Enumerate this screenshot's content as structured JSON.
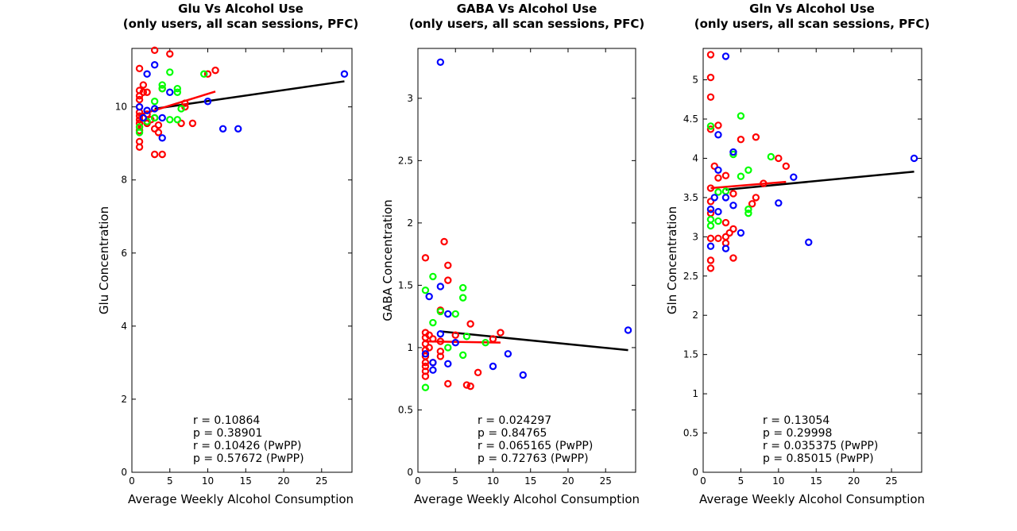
{
  "figure": {
    "charts": [
      {
        "title": "Glu Vs Alcohol Use",
        "subtitle": "(only users, all scan sessions, PFC)"
      },
      {
        "title": "GABA Vs Alcohol Use",
        "subtitle": "(only users, all scan sessions, PFC)"
      },
      {
        "title": "Gln Vs Alcohol Use",
        "subtitle": "(only users, all scan sessions, PFC)"
      }
    ]
  },
  "colors": {
    "red": "#ff0000",
    "green": "#00ff00",
    "blue": "#0000ff",
    "fit_all": "#000000",
    "fit_red": "#ff0000"
  },
  "chart_data": [
    {
      "type": "scatter",
      "title": "Glu Vs Alcohol Use",
      "subtitle": "(only users, all scan sessions, PFC)",
      "xlabel": "Average Weekly Alcohol Consumption",
      "ylabel": "Glu Concentration",
      "xlim": [
        0,
        29
      ],
      "ylim": [
        0,
        11.6
      ],
      "xticks": [
        0,
        5,
        10,
        15,
        20,
        25
      ],
      "yticks": [
        0,
        2,
        4,
        6,
        8,
        10
      ],
      "grid": false,
      "stats": [
        "r = 0.10864",
        "p = 0.38901",
        "r = 0.10426 (PwPP)",
        "p = 0.57672 (PwPP)"
      ],
      "series": [
        {
          "color": "red",
          "points": [
            [
              1,
              11.05
            ],
            [
              1,
              10.45
            ],
            [
              1,
              10.3
            ],
            [
              1,
              10.2
            ],
            [
              1,
              10.0
            ],
            [
              1,
              9.85
            ],
            [
              1,
              9.75
            ],
            [
              1,
              9.65
            ],
            [
              1,
              9.55
            ],
            [
              1,
              9.45
            ],
            [
              1,
              9.35
            ],
            [
              1,
              9.05
            ],
            [
              1,
              8.9
            ],
            [
              1.5,
              10.6
            ],
            [
              1.5,
              10.4
            ],
            [
              2,
              10.4
            ],
            [
              2,
              9.8
            ],
            [
              2,
              9.55
            ],
            [
              2.5,
              9.65
            ],
            [
              3,
              11.55
            ],
            [
              3,
              9.7
            ],
            [
              3,
              9.4
            ],
            [
              3,
              8.7
            ],
            [
              3.5,
              9.5
            ],
            [
              3.5,
              9.3
            ],
            [
              4,
              10.5
            ],
            [
              4,
              8.7
            ],
            [
              5,
              11.45
            ],
            [
              6.5,
              9.55
            ],
            [
              7,
              10.1
            ],
            [
              7,
              10.0
            ],
            [
              8,
              9.55
            ],
            [
              10,
              10.9
            ],
            [
              11,
              11.0
            ]
          ]
        },
        {
          "color": "green",
          "points": [
            [
              1,
              9.45
            ],
            [
              1,
              9.3
            ],
            [
              2,
              9.6
            ],
            [
              3,
              10.15
            ],
            [
              3,
              9.7
            ],
            [
              4,
              10.6
            ],
            [
              4,
              10.5
            ],
            [
              5,
              10.95
            ],
            [
              5,
              9.65
            ],
            [
              6,
              10.5
            ],
            [
              6,
              10.4
            ],
            [
              6,
              9.65
            ],
            [
              6.5,
              9.95
            ],
            [
              9.5,
              10.9
            ]
          ]
        },
        {
          "color": "blue",
          "points": [
            [
              1,
              10.0
            ],
            [
              1.5,
              9.7
            ],
            [
              2,
              10.9
            ],
            [
              2,
              9.9
            ],
            [
              3,
              11.15
            ],
            [
              3,
              9.95
            ],
            [
              4,
              9.7
            ],
            [
              4,
              9.15
            ],
            [
              5,
              10.4
            ],
            [
              10,
              10.15
            ],
            [
              12,
              9.4
            ],
            [
              14,
              9.4
            ],
            [
              28,
              10.9
            ]
          ]
        }
      ],
      "fits": [
        {
          "color": "fit_all",
          "x": [
            3,
            28
          ],
          "y": [
            9.95,
            10.7
          ]
        },
        {
          "color": "fit_red",
          "x": [
            1,
            11
          ],
          "y": [
            9.78,
            10.42
          ]
        }
      ]
    },
    {
      "type": "scatter",
      "title": "GABA Vs Alcohol Use",
      "subtitle": "(only users, all scan sessions, PFC)",
      "xlabel": "Average Weekly Alcohol Consumption",
      "ylabel": "GABA Concentration",
      "xlim": [
        0,
        29
      ],
      "ylim": [
        0,
        3.4
      ],
      "xticks": [
        0,
        5,
        10,
        15,
        20,
        25
      ],
      "yticks": [
        0,
        0.5,
        1,
        1.5,
        2,
        2.5,
        3
      ],
      "grid": false,
      "stats": [
        "r = 0.024297",
        "p = 0.84765",
        "r = 0.065165 (PwPP)",
        "p = 0.72763 (PwPP)"
      ],
      "series": [
        {
          "color": "red",
          "points": [
            [
              1,
              1.72
            ],
            [
              1,
              1.12
            ],
            [
              1,
              1.08
            ],
            [
              1,
              1.03
            ],
            [
              1,
              0.98
            ],
            [
              1,
              0.93
            ],
            [
              1,
              0.88
            ],
            [
              1,
              0.85
            ],
            [
              1,
              0.81
            ],
            [
              1,
              0.77
            ],
            [
              1.5,
              1.1
            ],
            [
              1.5,
              1.0
            ],
            [
              2,
              1.07
            ],
            [
              2,
              0.88
            ],
            [
              3,
              1.3
            ],
            [
              3,
              1.05
            ],
            [
              3,
              0.97
            ],
            [
              3,
              0.93
            ],
            [
              3.5,
              1.85
            ],
            [
              4,
              1.66
            ],
            [
              4,
              1.54
            ],
            [
              4,
              0.71
            ],
            [
              5,
              1.1
            ],
            [
              6.5,
              0.7
            ],
            [
              7,
              1.19
            ],
            [
              7,
              0.69
            ],
            [
              8,
              0.8
            ],
            [
              10,
              1.07
            ],
            [
              11,
              1.12
            ]
          ]
        },
        {
          "color": "green",
          "points": [
            [
              1,
              1.46
            ],
            [
              1,
              0.68
            ],
            [
              2,
              1.57
            ],
            [
              2,
              1.2
            ],
            [
              3,
              1.29
            ],
            [
              4,
              1.0
            ],
            [
              5,
              1.27
            ],
            [
              6,
              1.48
            ],
            [
              6,
              1.4
            ],
            [
              6,
              0.94
            ],
            [
              6.5,
              1.09
            ],
            [
              9,
              1.04
            ]
          ]
        },
        {
          "color": "blue",
          "points": [
            [
              1,
              0.95
            ],
            [
              1.5,
              1.41
            ],
            [
              2,
              0.88
            ],
            [
              2,
              0.82
            ],
            [
              3,
              3.29
            ],
            [
              3,
              1.49
            ],
            [
              3,
              1.11
            ],
            [
              4,
              1.27
            ],
            [
              4,
              0.87
            ],
            [
              5,
              1.04
            ],
            [
              10,
              0.85
            ],
            [
              12,
              0.95
            ],
            [
              14,
              0.78
            ],
            [
              28,
              1.14
            ]
          ]
        }
      ],
      "fits": [
        {
          "color": "fit_all",
          "x": [
            3,
            28
          ],
          "y": [
            1.13,
            0.98
          ]
        },
        {
          "color": "fit_red",
          "x": [
            1,
            11
          ],
          "y": [
            1.05,
            1.04
          ]
        }
      ]
    },
    {
      "type": "scatter",
      "title": "Gln Vs Alcohol Use",
      "subtitle": "(only users, all scan sessions, PFC)",
      "xlabel": "Average Weekly Alcohol Consumption",
      "ylabel": "Gln Concentration",
      "xlim": [
        0,
        29
      ],
      "ylim": [
        0,
        5.4
      ],
      "xticks": [
        0,
        5,
        10,
        15,
        20,
        25
      ],
      "yticks": [
        0,
        0.5,
        1,
        1.5,
        2,
        2.5,
        3,
        3.5,
        4,
        4.5,
        5
      ],
      "grid": false,
      "stats": [
        "r = 0.13054",
        "p = 0.29998",
        "r = 0.035375 (PwPP)",
        "p = 0.85015 (PwPP)"
      ],
      "series": [
        {
          "color": "red",
          "points": [
            [
              1,
              5.32
            ],
            [
              1,
              5.03
            ],
            [
              1,
              4.78
            ],
            [
              1,
              4.37
            ],
            [
              1,
              3.62
            ],
            [
              1,
              3.45
            ],
            [
              1,
              3.3
            ],
            [
              1,
              2.98
            ],
            [
              1,
              2.7
            ],
            [
              1,
              2.6
            ],
            [
              1.5,
              3.9
            ],
            [
              2,
              4.42
            ],
            [
              2,
              3.75
            ],
            [
              2,
              2.98
            ],
            [
              3,
              3.78
            ],
            [
              3,
              3.18
            ],
            [
              3,
              3.0
            ],
            [
              3,
              2.92
            ],
            [
              3.5,
              3.05
            ],
            [
              4,
              3.1
            ],
            [
              4,
              3.55
            ],
            [
              4,
              2.73
            ],
            [
              5,
              4.24
            ],
            [
              6.5,
              3.42
            ],
            [
              7,
              4.27
            ],
            [
              7,
              3.5
            ],
            [
              8,
              3.68
            ],
            [
              10,
              4.0
            ],
            [
              11,
              3.9
            ]
          ]
        },
        {
          "color": "green",
          "points": [
            [
              1,
              4.41
            ],
            [
              1,
              3.22
            ],
            [
              1,
              3.14
            ],
            [
              2,
              3.57
            ],
            [
              2,
              3.2
            ],
            [
              3,
              3.58
            ],
            [
              4,
              4.05
            ],
            [
              5,
              4.54
            ],
            [
              5,
              3.77
            ],
            [
              6,
              3.85
            ],
            [
              6,
              3.35
            ],
            [
              6,
              3.3
            ],
            [
              9,
              4.02
            ]
          ]
        },
        {
          "color": "blue",
          "points": [
            [
              1,
              3.35
            ],
            [
              1,
              2.88
            ],
            [
              1.5,
              3.5
            ],
            [
              2,
              4.3
            ],
            [
              2,
              3.85
            ],
            [
              2,
              3.32
            ],
            [
              3,
              5.3
            ],
            [
              3,
              3.5
            ],
            [
              3,
              2.85
            ],
            [
              4,
              4.08
            ],
            [
              4,
              3.4
            ],
            [
              5,
              3.05
            ],
            [
              10,
              3.43
            ],
            [
              12,
              3.76
            ],
            [
              14,
              2.93
            ],
            [
              28,
              4.0
            ]
          ]
        }
      ],
      "fits": [
        {
          "color": "fit_all",
          "x": [
            3,
            28
          ],
          "y": [
            3.6,
            3.83
          ]
        },
        {
          "color": "fit_red",
          "x": [
            1,
            11
          ],
          "y": [
            3.62,
            3.7
          ]
        }
      ]
    }
  ]
}
